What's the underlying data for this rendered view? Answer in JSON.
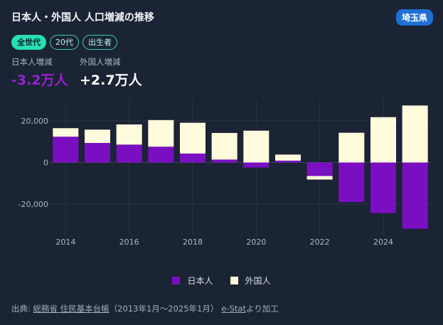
{
  "title": "日本人・外国人 人口増減の推移",
  "region": "埼玉県",
  "filters": [
    {
      "label": "全世代",
      "active": true
    },
    {
      "label": "20代",
      "active": false
    },
    {
      "label": "出生者",
      "active": false
    }
  ],
  "stats": {
    "japanese": {
      "label": "日本人増減",
      "value": "-3.2万人"
    },
    "foreign": {
      "label": "外国人増減",
      "value": "+2.7万人"
    }
  },
  "legend": {
    "japanese": "日本人",
    "foreign": "外国人"
  },
  "source": {
    "prefix": "出典: ",
    "link1": "総務省 住民基本台帳",
    "period": "（2013年1月〜2025年1月）",
    "link2": "e-Stat",
    "suffix": "より加工"
  },
  "colors": {
    "japanese": "#7a0fc2",
    "foreign": "#fffbdc",
    "background": "#1b2434"
  },
  "chart_data": {
    "type": "bar",
    "stacked": true,
    "x": [
      2014,
      2015,
      2016,
      2017,
      2018,
      2019,
      2020,
      2021,
      2022,
      2023,
      2024,
      2025
    ],
    "series": [
      {
        "name": "日本人",
        "values": [
          12400,
          9400,
          8600,
          7600,
          4300,
          1400,
          -2400,
          900,
          -6500,
          -19000,
          -24300,
          -31800
        ]
      },
      {
        "name": "外国人",
        "values": [
          4100,
          6400,
          9700,
          12800,
          14800,
          12800,
          15300,
          2900,
          -1700,
          14300,
          21800,
          27400
        ]
      }
    ],
    "y_ticks": [
      20000,
      0,
      -20000
    ],
    "y_tick_labels": [
      "20,000",
      "0",
      "-20,000"
    ],
    "x_ticks": [
      2014,
      2016,
      2018,
      2020,
      2022,
      2024
    ],
    "ylim": [
      -33000,
      30000
    ]
  }
}
